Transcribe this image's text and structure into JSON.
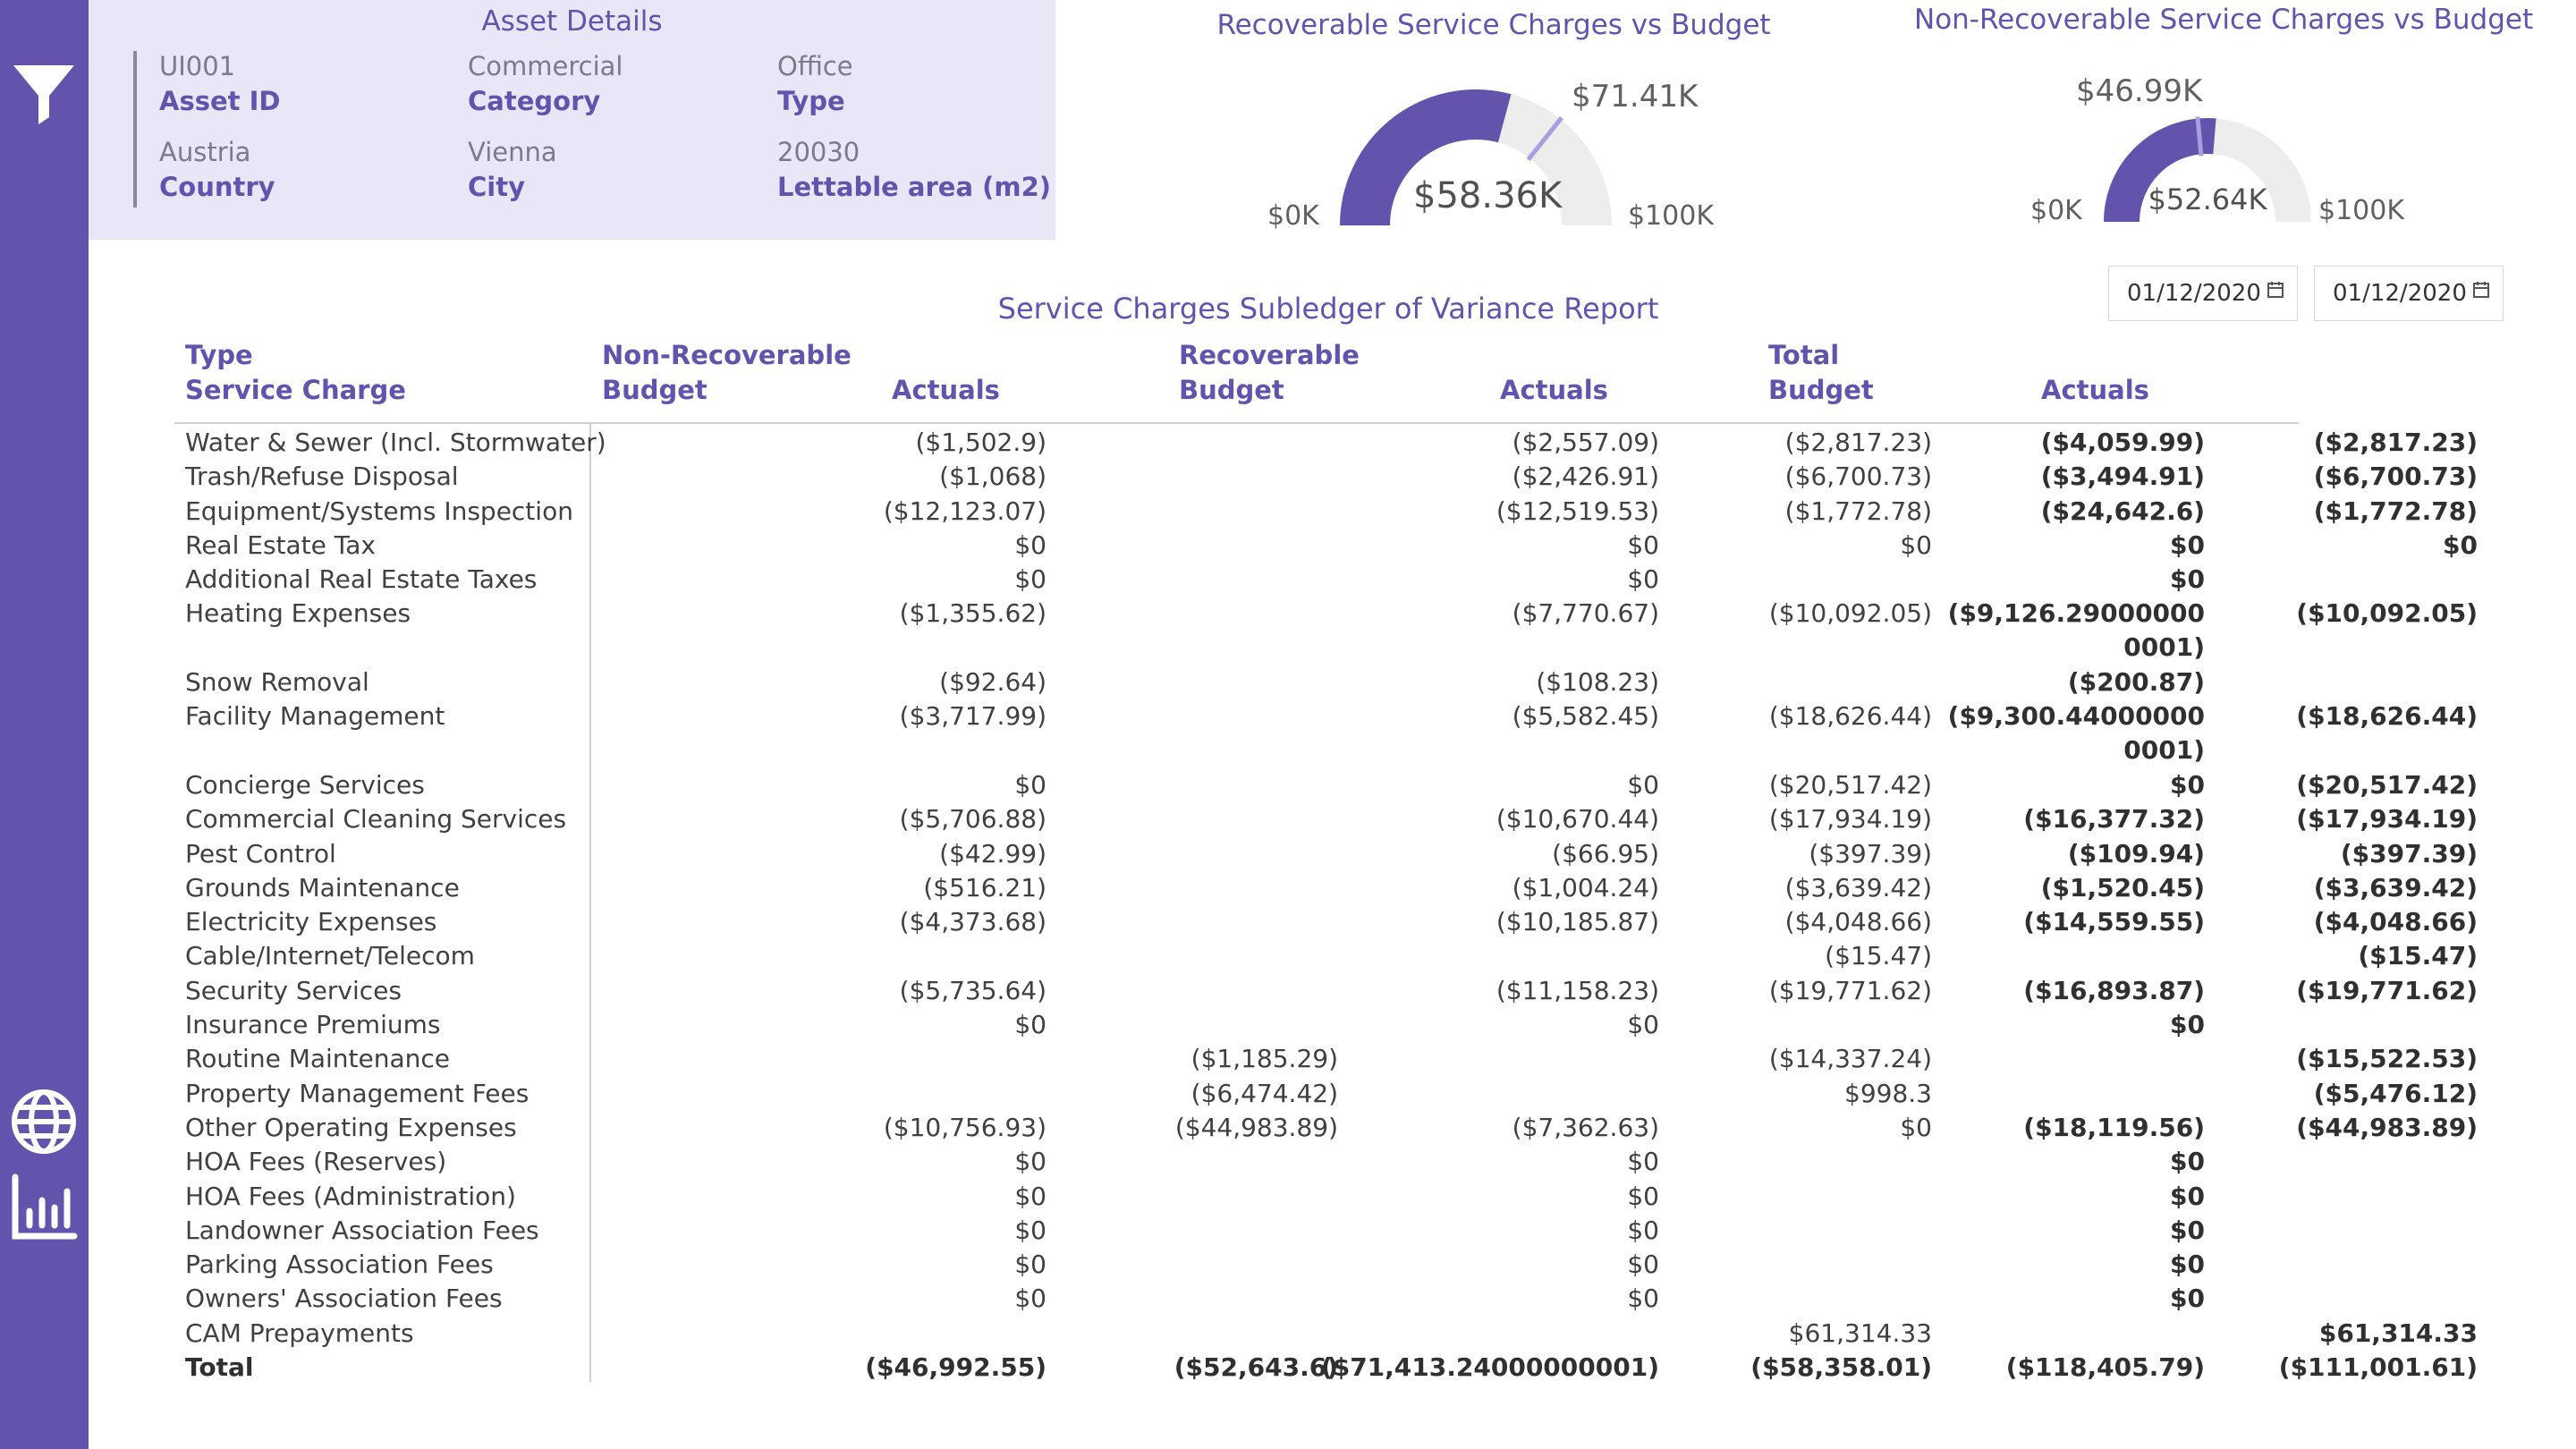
{
  "sidebar": {
    "icons": [
      "filter-icon",
      "globe-icon",
      "bar-chart-icon"
    ],
    "color": "#6353ad"
  },
  "asset_details": {
    "title": "Asset Details",
    "fields": [
      {
        "value": "UI001",
        "label": "Asset ID"
      },
      {
        "value": "Commercial",
        "label": "Category"
      },
      {
        "value": "Office",
        "label": "Type"
      },
      {
        "value": "Austria",
        "label": "Country"
      },
      {
        "value": "Vienna",
        "label": "City"
      },
      {
        "value": "20030",
        "label": "Lettable area (m2)"
      }
    ]
  },
  "gauges": [
    {
      "title": "Recoverable Service Charges vs Budget",
      "value": 58.36,
      "value_label": "$58.36K",
      "target": 71.41,
      "target_label": "$71.41K",
      "min": 0,
      "min_label": "$0K",
      "max": 100,
      "max_label": "$100K"
    },
    {
      "title": "Non-Recoverable Service Charges vs Budget",
      "value": 52.64,
      "value_label": "$52.64K",
      "target": 46.99,
      "target_label": "$46.99K",
      "min": 0,
      "min_label": "$0K",
      "max": 100,
      "max_label": "$100K"
    }
  ],
  "date_filters": [
    "01/12/2020",
    "01/12/2020"
  ],
  "report": {
    "title": "Service Charges Subledger of Variance Report",
    "headers": {
      "type": "Type",
      "service_charge": "Service Charge",
      "non_recoverable": "Non-Recoverable",
      "recoverable": "Recoverable",
      "total": "Total",
      "budget": "Budget",
      "actuals": "Actuals"
    },
    "rows": [
      {
        "name": "Water & Sewer (Incl. Stormwater)",
        "nr_budget": "($1,502.9)",
        "nr_actual": "",
        "r_budget": "($2,557.09)",
        "r_actual": "($2,817.23)",
        "t_budget": "($4,059.99)",
        "t_actual": "($2,817.23)"
      },
      {
        "name": "Trash/Refuse Disposal",
        "nr_budget": "($1,068)",
        "nr_actual": "",
        "r_budget": "($2,426.91)",
        "r_actual": "($6,700.73)",
        "t_budget": "($3,494.91)",
        "t_actual": "($6,700.73)"
      },
      {
        "name": "Equipment/Systems Inspection",
        "nr_budget": "($12,123.07)",
        "nr_actual": "",
        "r_budget": "($12,519.53)",
        "r_actual": "($1,772.78)",
        "t_budget": "($24,642.6)",
        "t_actual": "($1,772.78)"
      },
      {
        "name": "Real Estate Tax",
        "nr_budget": "$0",
        "nr_actual": "",
        "r_budget": "$0",
        "r_actual": "$0",
        "t_budget": "$0",
        "t_actual": "$0"
      },
      {
        "name": "Additional Real Estate Taxes",
        "nr_budget": "$0",
        "nr_actual": "",
        "r_budget": "$0",
        "r_actual": "",
        "t_budget": "$0",
        "t_actual": ""
      },
      {
        "name": "Heating Expenses",
        "nr_budget": "($1,355.62)",
        "nr_actual": "",
        "r_budget": "($7,770.67)",
        "r_actual": "($10,092.05)",
        "t_budget": "($9,126.290000000001)",
        "t_actual": "($10,092.05)"
      },
      {
        "name": "Snow Removal",
        "nr_budget": "($92.64)",
        "nr_actual": "",
        "r_budget": "($108.23)",
        "r_actual": "",
        "t_budget": "($200.87)",
        "t_actual": ""
      },
      {
        "name": "Facility Management",
        "nr_budget": "($3,717.99)",
        "nr_actual": "",
        "r_budget": "($5,582.45)",
        "r_actual": "($18,626.44)",
        "t_budget": "($9,300.440000000001)",
        "t_actual": "($18,626.44)"
      },
      {
        "name": "Concierge Services",
        "nr_budget": "$0",
        "nr_actual": "",
        "r_budget": "$0",
        "r_actual": "($20,517.42)",
        "t_budget": "$0",
        "t_actual": "($20,517.42)"
      },
      {
        "name": "Commercial Cleaning Services",
        "nr_budget": "($5,706.88)",
        "nr_actual": "",
        "r_budget": "($10,670.44)",
        "r_actual": "($17,934.19)",
        "t_budget": "($16,377.32)",
        "t_actual": "($17,934.19)"
      },
      {
        "name": "Pest Control",
        "nr_budget": "($42.99)",
        "nr_actual": "",
        "r_budget": "($66.95)",
        "r_actual": "($397.39)",
        "t_budget": "($109.94)",
        "t_actual": "($397.39)"
      },
      {
        "name": "Grounds Maintenance",
        "nr_budget": "($516.21)",
        "nr_actual": "",
        "r_budget": "($1,004.24)",
        "r_actual": "($3,639.42)",
        "t_budget": "($1,520.45)",
        "t_actual": "($3,639.42)"
      },
      {
        "name": "Electricity Expenses",
        "nr_budget": "($4,373.68)",
        "nr_actual": "",
        "r_budget": "($10,185.87)",
        "r_actual": "($4,048.66)",
        "t_budget": "($14,559.55)",
        "t_actual": "($4,048.66)"
      },
      {
        "name": "Cable/Internet/Telecom",
        "nr_budget": "",
        "nr_actual": "",
        "r_budget": "",
        "r_actual": "($15.47)",
        "t_budget": "",
        "t_actual": "($15.47)"
      },
      {
        "name": "Security Services",
        "nr_budget": "($5,735.64)",
        "nr_actual": "",
        "r_budget": "($11,158.23)",
        "r_actual": "($19,771.62)",
        "t_budget": "($16,893.87)",
        "t_actual": "($19,771.62)"
      },
      {
        "name": "Insurance Premiums",
        "nr_budget": "$0",
        "nr_actual": "",
        "r_budget": "$0",
        "r_actual": "",
        "t_budget": "$0",
        "t_actual": ""
      },
      {
        "name": "Routine Maintenance",
        "nr_budget": "",
        "nr_actual": "($1,185.29)",
        "r_budget": "",
        "r_actual": "($14,337.24)",
        "t_budget": "",
        "t_actual": "($15,522.53)"
      },
      {
        "name": "Property Management Fees",
        "nr_budget": "",
        "nr_actual": "($6,474.42)",
        "r_budget": "",
        "r_actual": "$998.3",
        "t_budget": "",
        "t_actual": "($5,476.12)"
      },
      {
        "name": "Other Operating Expenses",
        "nr_budget": "($10,756.93)",
        "nr_actual": "($44,983.89)",
        "r_budget": "($7,362.63)",
        "r_actual": "$0",
        "t_budget": "($18,119.56)",
        "t_actual": "($44,983.89)"
      },
      {
        "name": "HOA Fees (Reserves)",
        "nr_budget": "$0",
        "nr_actual": "",
        "r_budget": "$0",
        "r_actual": "",
        "t_budget": "$0",
        "t_actual": ""
      },
      {
        "name": "HOA Fees (Administration)",
        "nr_budget": "$0",
        "nr_actual": "",
        "r_budget": "$0",
        "r_actual": "",
        "t_budget": "$0",
        "t_actual": ""
      },
      {
        "name": "Landowner Association Fees",
        "nr_budget": "$0",
        "nr_actual": "",
        "r_budget": "$0",
        "r_actual": "",
        "t_budget": "$0",
        "t_actual": ""
      },
      {
        "name": "Parking Association Fees",
        "nr_budget": "$0",
        "nr_actual": "",
        "r_budget": "$0",
        "r_actual": "",
        "t_budget": "$0",
        "t_actual": ""
      },
      {
        "name": "Owners' Association Fees",
        "nr_budget": "$0",
        "nr_actual": "",
        "r_budget": "$0",
        "r_actual": "",
        "t_budget": "$0",
        "t_actual": ""
      },
      {
        "name": "CAM Prepayments",
        "nr_budget": "",
        "nr_actual": "",
        "r_budget": "",
        "r_actual": "$61,314.33",
        "t_budget": "",
        "t_actual": "$61,314.33"
      }
    ],
    "total": {
      "name": "Total",
      "nr_budget": "($46,992.55)",
      "nr_actual": "($52,643.6)",
      "r_budget": "($71,413.24000000001)",
      "r_actual": "($58,358.01)",
      "t_budget": "($118,405.79)",
      "t_actual": "($111,001.61)"
    }
  },
  "colors": {
    "accent": "#6353ad",
    "gauge_fill": "#6353ad",
    "gauge_track": "#ededed",
    "gauge_target": "#a89ee0",
    "panel_bg": "#e9e7f7"
  }
}
